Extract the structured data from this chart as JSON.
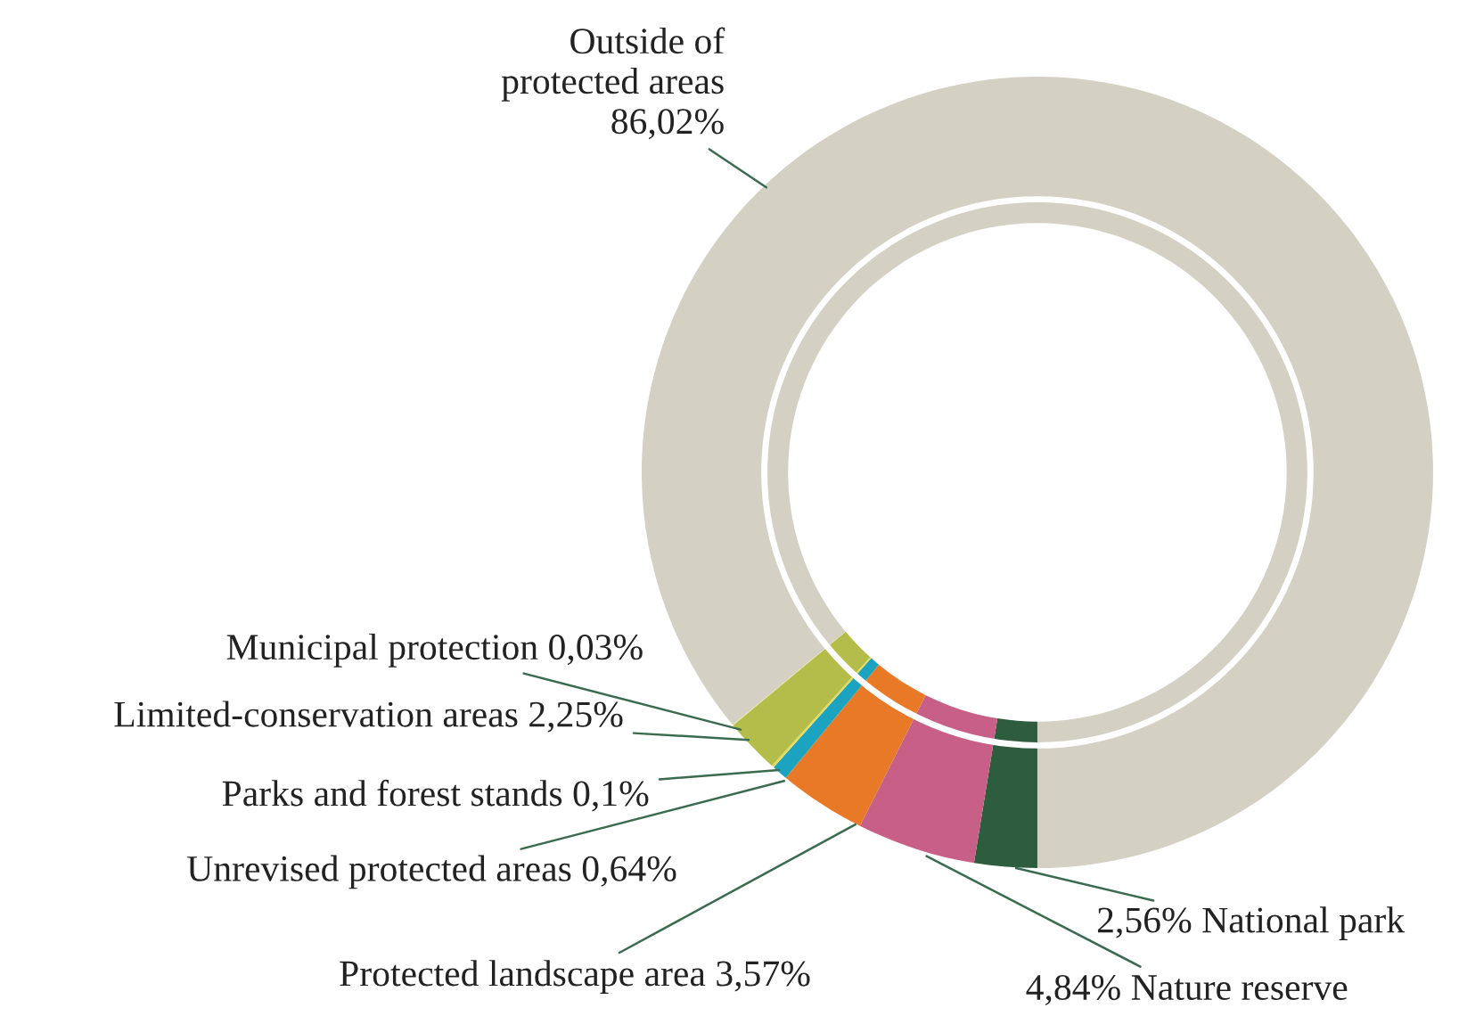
{
  "chart_data": {
    "type": "donut",
    "categories": [
      "National park",
      "Nature reserve",
      "Protected landscape area",
      "Unrevised protected areas",
      "Parks and forest stands",
      "Limited-conservation areas",
      "Municipal protection",
      "Outside of\nprotected areas"
    ],
    "values": [
      2.56,
      4.84,
      3.57,
      0.64,
      0.1,
      2.25,
      0.03,
      86.02
    ],
    "value_labels": [
      "2,56%",
      "4,84%",
      "3,57%",
      "0,64%",
      "0,1%",
      "2,25%",
      "0,03%",
      "86,02%"
    ],
    "colors": [
      "#2d5c3f",
      "#c85f87",
      "#e87a27",
      "#1ba3bf",
      "#e6dc5a",
      "#b4bc4a",
      "#d9e08a",
      "#d4d0c4"
    ]
  }
}
